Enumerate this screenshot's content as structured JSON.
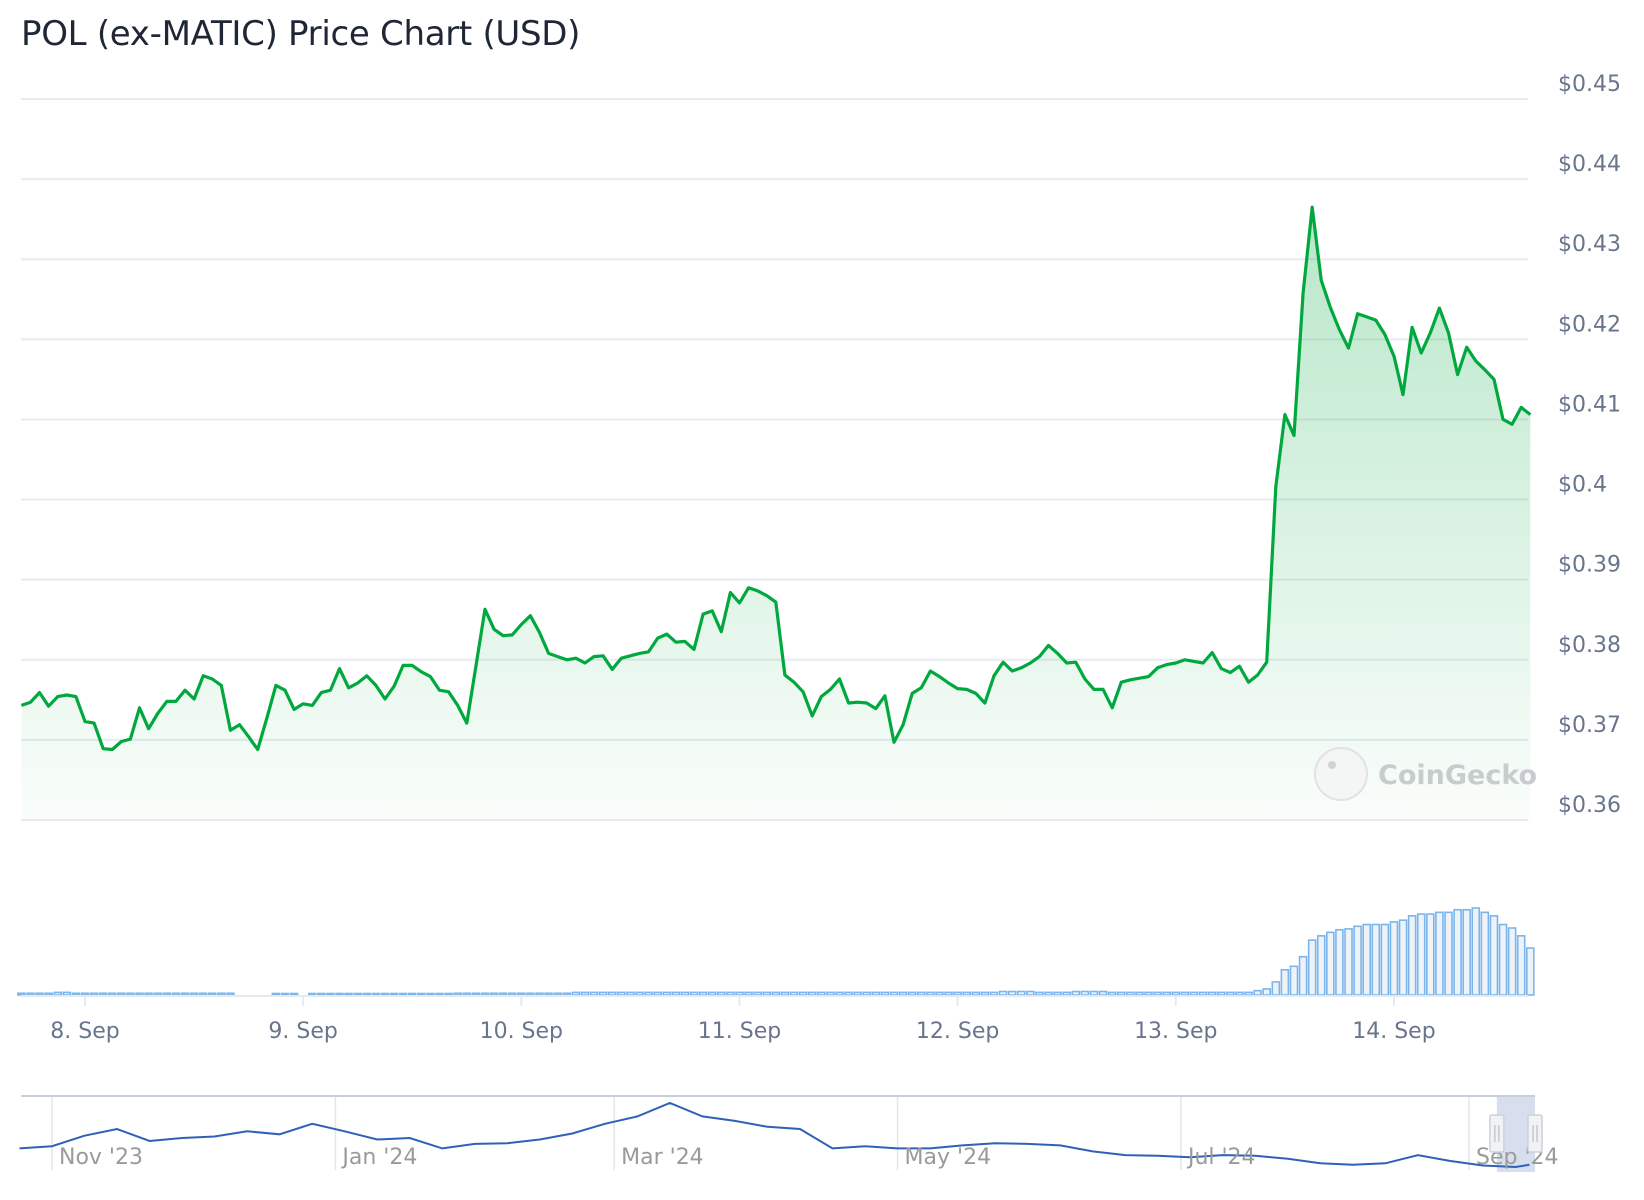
{
  "header": {
    "title": "POL (ex-MATIC) Price Chart (USD)"
  },
  "watermark": {
    "text": "CoinGecko"
  },
  "colors": {
    "line": "#00a83e",
    "fill": "#00a83e",
    "grid": "#e8ebf0",
    "volume_stroke": "#7cb5ec",
    "volume_fill": "#eef3f8",
    "navigator_line": "#3060b8",
    "navigator_selection": "#d3dcec"
  },
  "chart_data": [
    {
      "type": "area",
      "title": "POL (ex-MATIC) Price Chart (USD)",
      "ylim": [
        0.36,
        0.45
      ],
      "y_ticks": [
        "$0.45",
        "$0.44",
        "$0.43",
        "$0.42",
        "$0.41",
        "$0.4",
        "$0.39",
        "$0.38",
        "$0.37",
        "$0.36"
      ],
      "y_tick_values": [
        0.45,
        0.44,
        0.43,
        0.42,
        0.41,
        0.4,
        0.39,
        0.38,
        0.37,
        0.36
      ],
      "x_ticks": [
        "8. Sep",
        "9. Sep",
        "10. Sep",
        "11. Sep",
        "12. Sep",
        "13. Sep",
        "14. Sep"
      ],
      "grid": true,
      "series_by_day": [
        {
          "day": "7 Sep",
          "first_hour": 17,
          "prices": [
            0.3743,
            0.3747,
            0.3759,
            0.3742,
            0.3754,
            0.3756,
            0.3754
          ]
        },
        {
          "day": "8 Sep",
          "first_hour": 0,
          "prices": [
            0.3723,
            0.3721,
            0.3689,
            0.3688,
            0.3698,
            0.3701,
            0.374,
            0.3714,
            0.3733,
            0.3748,
            0.3748,
            0.3762,
            0.3751,
            0.378,
            0.3776,
            0.3768,
            0.3712,
            0.3719,
            0.3704,
            0.3688,
            0.3727,
            0.3768,
            0.3762,
            0.3738
          ]
        },
        {
          "day": "9 Sep",
          "first_hour": 0,
          "prices": [
            0.3745,
            0.3743,
            0.3759,
            0.3762,
            0.3789,
            0.3765,
            0.3771,
            0.378,
            0.3768,
            0.3751,
            0.3767,
            0.3793,
            0.3793,
            0.3785,
            0.3779,
            0.3762,
            0.376,
            0.3743,
            0.3721,
            0.3792,
            0.3863,
            0.3838,
            0.383,
            0.3831
          ]
        },
        {
          "day": "10 Sep",
          "first_hour": 0,
          "prices": [
            0.3844,
            0.3855,
            0.3834,
            0.3808,
            0.3804,
            0.38,
            0.3802,
            0.3796,
            0.3804,
            0.3805,
            0.3788,
            0.3802,
            0.3805,
            0.3808,
            0.381,
            0.3827,
            0.3832,
            0.3822,
            0.3823,
            0.3813,
            0.3857,
            0.3861,
            0.3835,
            0.3884
          ]
        },
        {
          "day": "11 Sep",
          "first_hour": 0,
          "prices": [
            0.3871,
            0.389,
            0.3886,
            0.388,
            0.3872,
            0.3781,
            0.3772,
            0.376,
            0.373,
            0.3754,
            0.3763,
            0.3776,
            0.3746,
            0.3747,
            0.3746,
            0.3739,
            0.3755,
            0.3697,
            0.3719,
            0.3758,
            0.3765,
            0.3786,
            0.3779,
            0.3771
          ]
        },
        {
          "day": "12 Sep",
          "first_hour": 0,
          "prices": [
            0.3764,
            0.3763,
            0.3758,
            0.3746,
            0.378,
            0.3797,
            0.3786,
            0.379,
            0.3796,
            0.3804,
            0.3818,
            0.3808,
            0.3796,
            0.3797,
            0.3776,
            0.3763,
            0.3763,
            0.374,
            0.3772,
            0.3775,
            0.3777,
            0.3779,
            0.379,
            0.3794
          ]
        },
        {
          "day": "13 Sep",
          "first_hour": 0,
          "prices": [
            0.3796,
            0.38,
            0.3798,
            0.3796,
            0.3809,
            0.3789,
            0.3784,
            0.3792,
            0.3772,
            0.3781,
            0.3797,
            0.4016,
            0.4106,
            0.408,
            0.4258,
            0.4365,
            0.4274,
            0.424,
            0.4212,
            0.4189,
            0.4232,
            0.4228,
            0.4224,
            0.4206
          ]
        },
        {
          "day": "14 Sep",
          "first_hour": 0,
          "prices": [
            0.4179,
            0.4131,
            0.4215,
            0.4183,
            0.4208,
            0.4239,
            0.4208,
            0.4156,
            0.419,
            0.4173,
            0.4162,
            0.415,
            0.41,
            0.4094,
            0.4115,
            0.4106
          ]
        }
      ]
    },
    {
      "type": "bar",
      "series_relative_volume": [
        2,
        2,
        2,
        2,
        3,
        3,
        2,
        2,
        2,
        2,
        2,
        2,
        2,
        2,
        2,
        2,
        2,
        2,
        2,
        2,
        2,
        2,
        2,
        2,
        0,
        0,
        0,
        0,
        1,
        1,
        1,
        0,
        1,
        1,
        1,
        1,
        1,
        1,
        1,
        1,
        1,
        1,
        1,
        1,
        1,
        1,
        1,
        1,
        2,
        2,
        2,
        2,
        2,
        2,
        2,
        2,
        2,
        2,
        2,
        2,
        2,
        3,
        3,
        3,
        3,
        3,
        3,
        3,
        3,
        3,
        3,
        3,
        3,
        3,
        3,
        3,
        3,
        3,
        3,
        3,
        3,
        3,
        3,
        3,
        3,
        3,
        3,
        3,
        3,
        3,
        3,
        3,
        3,
        3,
        3,
        3,
        3,
        3,
        3,
        3,
        3,
        3,
        3,
        3,
        3,
        3,
        3,
        3,
        4,
        4,
        4,
        4,
        3,
        3,
        3,
        3,
        4,
        4,
        4,
        4,
        3,
        3,
        3,
        3,
        3,
        3,
        3,
        3,
        3,
        3,
        3,
        3,
        3,
        3,
        3,
        3,
        5,
        7,
        15,
        29,
        33,
        44,
        63,
        68,
        72,
        75,
        76,
        79,
        81,
        81,
        81,
        84,
        86,
        91,
        93,
        93,
        95,
        95,
        98,
        98,
        100,
        95,
        91,
        81,
        77,
        68,
        54
      ]
    },
    {
      "type": "line",
      "x_ticks": [
        "Nov '23",
        "Jan '24",
        "Mar '24",
        "May '24",
        "Jul '24",
        "Sep '24"
      ],
      "x_tick_dates": [
        "2023-11-01",
        "2024-01-01",
        "2024-03-01",
        "2024-05-01",
        "2024-07-01",
        "2024-09-01"
      ],
      "points": [
        [
          "2023-10-25",
          0.63
        ],
        [
          "2023-11-01",
          0.66
        ],
        [
          "2023-11-08",
          0.8
        ],
        [
          "2023-11-15",
          0.89
        ],
        [
          "2023-11-22",
          0.73
        ],
        [
          "2023-11-29",
          0.77
        ],
        [
          "2023-12-06",
          0.79
        ],
        [
          "2023-12-13",
          0.86
        ],
        [
          "2023-12-20",
          0.82
        ],
        [
          "2023-12-27",
          0.96
        ],
        [
          "2024-01-03",
          0.86
        ],
        [
          "2024-01-10",
          0.75
        ],
        [
          "2024-01-17",
          0.77
        ],
        [
          "2024-01-24",
          0.63
        ],
        [
          "2024-01-31",
          0.69
        ],
        [
          "2024-02-07",
          0.7
        ],
        [
          "2024-02-14",
          0.75
        ],
        [
          "2024-02-21",
          0.83
        ],
        [
          "2024-02-28",
          0.96
        ],
        [
          "2024-03-06",
          1.06
        ],
        [
          "2024-03-13",
          1.24
        ],
        [
          "2024-03-20",
          1.06
        ],
        [
          "2024-03-27",
          1.0
        ],
        [
          "2024-04-03",
          0.92
        ],
        [
          "2024-04-10",
          0.89
        ],
        [
          "2024-04-17",
          0.63
        ],
        [
          "2024-04-24",
          0.66
        ],
        [
          "2024-05-01",
          0.63
        ],
        [
          "2024-05-08",
          0.63
        ],
        [
          "2024-05-15",
          0.67
        ],
        [
          "2024-05-22",
          0.7
        ],
        [
          "2024-05-29",
          0.69
        ],
        [
          "2024-06-05",
          0.67
        ],
        [
          "2024-06-12",
          0.59
        ],
        [
          "2024-06-19",
          0.54
        ],
        [
          "2024-06-26",
          0.53
        ],
        [
          "2024-07-03",
          0.51
        ],
        [
          "2024-07-10",
          0.54
        ],
        [
          "2024-07-17",
          0.53
        ],
        [
          "2024-07-24",
          0.49
        ],
        [
          "2024-07-31",
          0.43
        ],
        [
          "2024-08-07",
          0.41
        ],
        [
          "2024-08-14",
          0.43
        ],
        [
          "2024-08-21",
          0.54
        ],
        [
          "2024-08-28",
          0.46
        ],
        [
          "2024-09-04",
          0.4
        ],
        [
          "2024-09-11",
          0.38
        ],
        [
          "2024-09-14",
          0.41
        ]
      ],
      "selected_range": [
        "2024-09-07",
        "2024-09-14"
      ]
    }
  ]
}
